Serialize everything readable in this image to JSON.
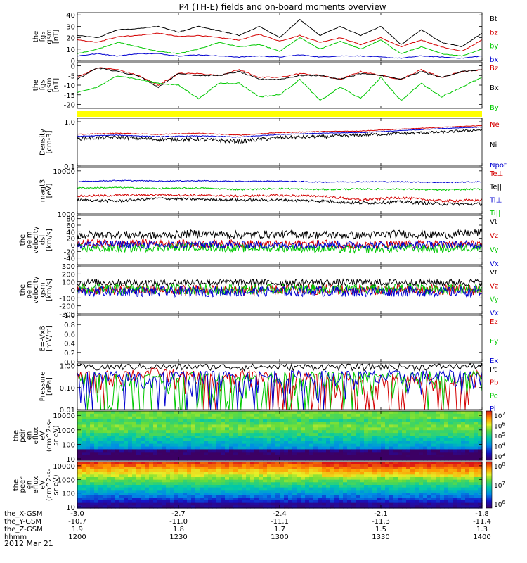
{
  "title": "P4 (TH-E) fields and on-board moments overview",
  "date_label": "2012 Mar 21",
  "ephemeris": {
    "rows": [
      {
        "label": "the_X-GSM",
        "values": [
          "-3.0",
          "-2.7",
          "-2.4",
          "-2.1",
          "-1.8"
        ]
      },
      {
        "label": "the_Y-GSM",
        "values": [
          "-10.7",
          "-11.0",
          "-11.1",
          "-11.3",
          "-11.4"
        ]
      },
      {
        "label": "the_Z-GSM",
        "values": [
          "1.9",
          "1.8",
          "1.7",
          "1.5",
          "1.3"
        ]
      },
      {
        "label": "hhmm",
        "values": [
          "1200",
          "1230",
          "1300",
          "1330",
          "1400"
        ]
      }
    ]
  },
  "colors": {
    "black": "#000000",
    "red": "#d40000",
    "green": "#00c800",
    "blue": "#0000d0",
    "yellow": "#ffff00"
  },
  "chart_data": [
    {
      "id": "fgs_mag",
      "type": "line",
      "ylabel": [
        "the",
        "fgs",
        "gsm",
        "[nT]"
      ],
      "ylim": [
        0,
        42
      ],
      "yticks": [
        0,
        10,
        20,
        30,
        40
      ],
      "tick_labels": [
        "0",
        "10",
        "20",
        "30",
        "40"
      ],
      "x": [
        0,
        0.05,
        0.1,
        0.15,
        0.2,
        0.25,
        0.3,
        0.35,
        0.4,
        0.45,
        0.5,
        0.55,
        0.6,
        0.65,
        0.7,
        0.75,
        0.8,
        0.85,
        0.9,
        0.95,
        1.0
      ],
      "series": [
        {
          "name": "Bt",
          "color": "black",
          "values": [
            22,
            20,
            27,
            28,
            30,
            25,
            30,
            26,
            22,
            30,
            20,
            36,
            22,
            30,
            22,
            30,
            14,
            27,
            16,
            12,
            24
          ]
        },
        {
          "name": "bz",
          "color": "red",
          "values": [
            18,
            16,
            21,
            22,
            24,
            21,
            22,
            20,
            18,
            23,
            17,
            22,
            16,
            20,
            14,
            20,
            12,
            18,
            12,
            8,
            18
          ]
        },
        {
          "name": "by",
          "color": "green",
          "values": [
            6,
            10,
            16,
            12,
            8,
            6,
            10,
            16,
            12,
            14,
            8,
            20,
            10,
            17,
            10,
            18,
            6,
            12,
            6,
            4,
            10
          ]
        },
        {
          "name": "bx",
          "color": "blue",
          "values": [
            4,
            6,
            4,
            6,
            6,
            4,
            5,
            4,
            3,
            4,
            3,
            5,
            3,
            4,
            4,
            3,
            2,
            4,
            3,
            2,
            4
          ]
        }
      ]
    },
    {
      "id": "fgs_gsm",
      "type": "line",
      "ylabel": [
        "the",
        "fgs",
        "gsm",
        "[nT]"
      ],
      "ylim": [
        -22,
        2
      ],
      "yticks": [
        0,
        -5,
        -10,
        -15,
        -20
      ],
      "tick_labels": [
        "0",
        "-5",
        "-10",
        "-15",
        "-20"
      ],
      "x": [
        0,
        0.05,
        0.1,
        0.15,
        0.2,
        0.25,
        0.3,
        0.35,
        0.4,
        0.45,
        0.5,
        0.55,
        0.6,
        0.65,
        0.7,
        0.75,
        0.8,
        0.85,
        0.9,
        0.95,
        1.0
      ],
      "series": [
        {
          "name": "Bz",
          "color": "red",
          "values": [
            -6,
            -1,
            -2,
            -5,
            -10,
            -4,
            -4,
            -5,
            -2,
            -6,
            -6,
            -4,
            -5,
            -7,
            -3,
            -5,
            -7,
            -2,
            -6,
            -3,
            -2
          ]
        },
        {
          "name": "Bx",
          "color": "black",
          "values": [
            -7,
            -1,
            -3,
            -5,
            -11,
            -4,
            -5,
            -5,
            -3,
            -7,
            -7,
            -5,
            -5,
            -7,
            -4,
            -5,
            -7,
            -3,
            -6,
            -3,
            -2
          ]
        },
        {
          "name": "By",
          "color": "green",
          "values": [
            -14,
            -11,
            -5,
            -7,
            -9,
            -10,
            -17,
            -9,
            -9,
            -16,
            -15,
            -7,
            -18,
            -11,
            -17,
            -6,
            -18,
            -9,
            -16,
            -11,
            -6
          ]
        }
      ]
    },
    {
      "id": "fgs_flag",
      "type": "bar",
      "ylabel": [],
      "ylim": [
        0,
        1
      ],
      "yticks": [],
      "tick_labels": [],
      "series": [
        {
          "name": "",
          "color": "yellow",
          "values": [
            1
          ]
        }
      ]
    },
    {
      "id": "density",
      "type": "line",
      "scale": "log",
      "ylabel": [
        "Density",
        "[cm-3]"
      ],
      "ylim": [
        0.1,
        1.2
      ],
      "yticks": [
        1.0,
        0.1
      ],
      "tick_labels": [
        "1.0",
        "0.1"
      ],
      "x": [
        0,
        0.1,
        0.2,
        0.3,
        0.4,
        0.5,
        0.6,
        0.7,
        0.8,
        0.9,
        1.0
      ],
      "series": [
        {
          "name": "Ne",
          "color": "red",
          "values": [
            0.52,
            0.55,
            0.52,
            0.55,
            0.5,
            0.57,
            0.6,
            0.62,
            0.68,
            0.75,
            0.82
          ]
        },
        {
          "name": "Ni",
          "color": "black",
          "values": [
            0.42,
            0.45,
            0.4,
            0.4,
            0.36,
            0.44,
            0.46,
            0.5,
            0.55,
            0.58,
            0.66
          ]
        },
        {
          "name": "Npot",
          "color": "blue",
          "values": [
            0.47,
            0.5,
            0.46,
            0.48,
            0.45,
            0.52,
            0.55,
            0.57,
            0.63,
            0.7,
            0.76
          ]
        }
      ]
    },
    {
      "id": "temperature",
      "type": "line",
      "scale": "log",
      "ylabel": [
        "magt3",
        "[eV]"
      ],
      "ylim": [
        1000,
        12000
      ],
      "yticks": [
        10000,
        1000
      ],
      "tick_labels": [
        "10000",
        "1000"
      ],
      "x": [
        0,
        0.1,
        0.2,
        0.3,
        0.4,
        0.5,
        0.6,
        0.7,
        0.8,
        0.9,
        1.0
      ],
      "series": [
        {
          "name": "Te⊥",
          "color": "red",
          "values": [
            2600,
            2700,
            2800,
            2700,
            2600,
            2700,
            2600,
            2100,
            2400,
            2000,
            2100
          ]
        },
        {
          "name": "Te||",
          "color": "black",
          "values": [
            2100,
            2000,
            2300,
            2200,
            2100,
            2100,
            2000,
            1800,
            1900,
            1700,
            1700
          ]
        },
        {
          "name": "Ti⊥",
          "color": "blue",
          "values": [
            5600,
            6000,
            5800,
            5900,
            5700,
            5800,
            5500,
            5600,
            5600,
            5400,
            5600
          ]
        },
        {
          "name": "Ti||",
          "color": "green",
          "values": [
            4000,
            4100,
            3900,
            4000,
            3700,
            3900,
            3700,
            3800,
            3800,
            3600,
            3800
          ]
        }
      ]
    },
    {
      "id": "peim_velocity_dsl",
      "type": "line",
      "ylabel": [
        "the",
        "peim",
        "velocity",
        "dsl",
        "[km/s]"
      ],
      "ylim": [
        -60,
        90
      ],
      "yticks": [
        80,
        60,
        40,
        20,
        0,
        -20,
        -40
      ],
      "tick_labels": [
        "80",
        "60",
        "40",
        "20",
        "0",
        "-20",
        "-40"
      ],
      "x": [
        0,
        0.1,
        0.2,
        0.3,
        0.4,
        0.5,
        0.6,
        0.7,
        0.8,
        0.9,
        1.0
      ],
      "series": [
        {
          "name": "Vt",
          "color": "black",
          "values": [
            30,
            32,
            28,
            35,
            30,
            33,
            31,
            29,
            34,
            30,
            38
          ]
        },
        {
          "name": "Vz",
          "color": "red",
          "values": [
            5,
            3,
            6,
            2,
            4,
            1,
            5,
            -3,
            2,
            0,
            3
          ]
        },
        {
          "name": "Vy",
          "color": "green",
          "values": [
            -10,
            -12,
            -8,
            -6,
            -11,
            -9,
            -12,
            -14,
            -10,
            -12,
            -8
          ]
        },
        {
          "name": "Vx",
          "color": "blue",
          "values": [
            0,
            2,
            -2,
            1,
            0,
            -1,
            2,
            0,
            -2,
            1,
            0
          ]
        }
      ]
    },
    {
      "id": "peim_velocity_gsm",
      "type": "line",
      "ylabel": [
        "the",
        "peim",
        "velocity",
        "gsm",
        "[km/s]"
      ],
      "ylim": [
        -300,
        300
      ],
      "yticks": [
        300,
        200,
        100,
        0,
        -100,
        -200,
        -300
      ],
      "tick_labels": [
        "300",
        "200",
        "100",
        "0",
        "-100",
        "-200",
        "-300"
      ],
      "x": [
        0,
        0.1,
        0.2,
        0.3,
        0.4,
        0.5,
        0.6,
        0.7,
        0.8,
        0.9,
        1.0
      ],
      "series": [
        {
          "name": "Vt",
          "color": "black",
          "values": [
            90,
            95,
            85,
            100,
            92,
            88,
            96,
            90,
            94,
            91,
            97
          ]
        },
        {
          "name": "Vz",
          "color": "red",
          "values": [
            0,
            5,
            -5,
            3,
            0,
            -2,
            4,
            1,
            -3,
            2,
            0
          ]
        },
        {
          "name": "Vy",
          "color": "green",
          "values": [
            10,
            5,
            12,
            8,
            6,
            10,
            9,
            7,
            11,
            8,
            10
          ]
        },
        {
          "name": "Vx",
          "color": "blue",
          "values": [
            -20,
            -15,
            -25,
            -18,
            -22,
            -20,
            -17,
            -23,
            -19,
            -21,
            -20
          ]
        }
      ]
    },
    {
      "id": "efield",
      "type": "line",
      "ylabel": [
        "E=-VxB",
        "[mV/m]"
      ],
      "ylim": [
        0,
        1.0
      ],
      "yticks": [
        1.0,
        0.8,
        0.6,
        0.4,
        0.2,
        0.0
      ],
      "tick_labels": [
        "1.0",
        "0.8",
        "0.6",
        "0.4",
        "0.2",
        "0.0"
      ],
      "x": [],
      "series": [
        {
          "name": "Ez",
          "color": "red",
          "values": []
        },
        {
          "name": "Ey",
          "color": "green",
          "values": []
        },
        {
          "name": "Ex",
          "color": "blue",
          "values": []
        }
      ]
    },
    {
      "id": "pressure",
      "type": "line",
      "scale": "log",
      "ylabel": [
        "Pressure",
        "[nPa]"
      ],
      "ylim": [
        0.01,
        1.3
      ],
      "yticks": [
        1.0,
        0.1,
        0.01
      ],
      "tick_labels": [
        "1.00",
        "0.10",
        "0.01"
      ],
      "x": [
        0,
        0.05,
        0.1,
        0.15,
        0.2,
        0.25,
        0.3,
        0.35,
        0.4,
        0.45,
        0.5,
        0.55,
        0.6,
        0.65,
        0.7,
        0.75,
        0.8,
        0.85,
        0.9,
        0.95,
        1.0
      ],
      "series": [
        {
          "name": "Pt",
          "color": "black",
          "values": [
            0.9,
            0.85,
            0.9,
            0.92,
            0.9,
            0.88,
            0.9,
            0.92,
            0.88,
            0.9,
            0.88,
            0.9,
            0.92,
            0.9,
            0.88,
            0.92,
            0.9,
            0.88,
            0.95,
            0.92,
            1.05
          ]
        },
        {
          "name": "Pb",
          "color": "red",
          "values": [
            0.3,
            0.24,
            0.4,
            0.45,
            0.5,
            0.35,
            0.25,
            0.14,
            0.3,
            0.4,
            0.14,
            0.28,
            0.1,
            0.2,
            0.1,
            0.2,
            0.09,
            0.14,
            0.06,
            0.12,
            0.38
          ]
        },
        {
          "name": "Pe",
          "color": "green",
          "values": [
            0.2,
            0.21,
            0.2,
            0.2,
            0.19,
            0.21,
            0.21,
            0.22,
            0.22,
            0.21,
            0.23,
            0.23,
            0.22,
            0.24,
            0.25,
            0.24,
            0.25,
            0.26,
            0.26,
            0.27,
            0.28
          ]
        },
        {
          "name": "Pi",
          "color": "blue",
          "values": [
            0.26,
            0.27,
            0.26,
            0.27,
            0.26,
            0.28,
            0.28,
            0.29,
            0.29,
            0.28,
            0.3,
            0.3,
            0.3,
            0.31,
            0.31,
            0.31,
            0.32,
            0.32,
            0.33,
            0.34,
            0.36
          ]
        }
      ]
    },
    {
      "id": "peir_en_eflux",
      "type": "heatmap",
      "ylabel": [
        "the",
        "peir",
        "en",
        "eflux",
        "eV",
        "(cm^2-s-",
        "sr-eV)"
      ],
      "ylim": [
        8,
        20000
      ],
      "yticks": [
        10000,
        1000,
        100,
        10
      ],
      "tick_labels": [
        "10000",
        "1000",
        "100",
        "10"
      ],
      "colorbar": {
        "range": [
          1000,
          10000000
        ],
        "tick_labels": [
          "10^7",
          "10^6",
          "10^5",
          "10^4",
          "10^3"
        ]
      }
    },
    {
      "id": "peer_en_eflux",
      "type": "heatmap",
      "ylabel": [
        "the",
        "peer",
        "en",
        "eflux",
        "eV",
        "(cm^2-s-",
        "sr-eV)"
      ],
      "ylim": [
        8,
        20000
      ],
      "yticks": [
        10000,
        1000,
        100,
        10
      ],
      "tick_labels": [
        "10000",
        "1000",
        "100",
        "10"
      ],
      "colorbar": {
        "range": [
          300000,
          100000000
        ],
        "tick_labels": [
          "10^8",
          "10^7",
          "10^6"
        ]
      }
    }
  ]
}
